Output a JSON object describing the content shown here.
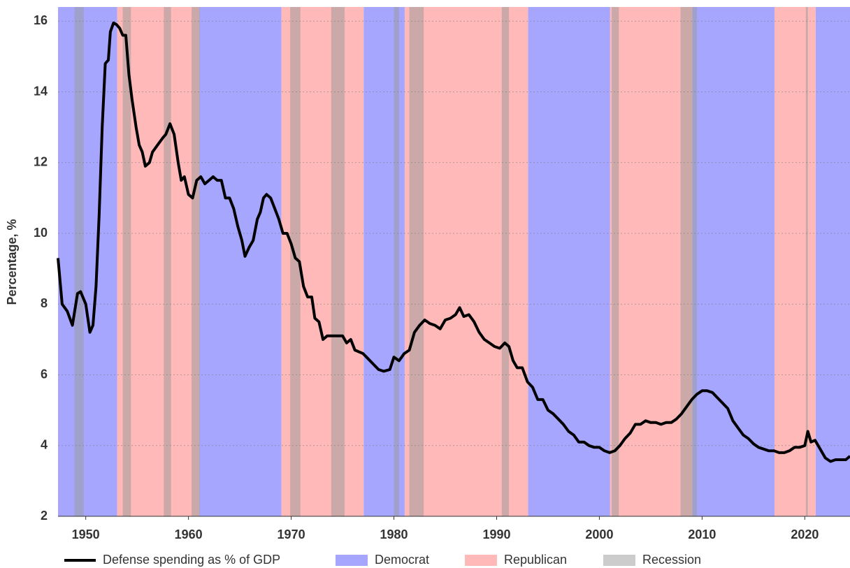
{
  "chart_data": {
    "type": "line",
    "y_label": "Percentage, %",
    "x": [
      1947.3,
      1947.7,
      1948.2,
      1948.7,
      1949.2,
      1949.5,
      1950.0,
      1950.4,
      1950.7,
      1951.0,
      1951.3,
      1951.6,
      1951.9,
      1952.2,
      1952.4,
      1952.7,
      1953.0,
      1953.3,
      1953.6,
      1953.9,
      1954.2,
      1954.5,
      1954.9,
      1955.2,
      1955.5,
      1955.8,
      1956.2,
      1956.5,
      1957.0,
      1957.5,
      1957.8,
      1958.2,
      1958.6,
      1959.0,
      1959.3,
      1959.6,
      1960.0,
      1960.4,
      1960.8,
      1961.2,
      1961.6,
      1962.0,
      1962.4,
      1962.8,
      1963.2,
      1963.6,
      1964.0,
      1964.4,
      1964.8,
      1965.2,
      1965.5,
      1965.9,
      1966.3,
      1966.7,
      1967.0,
      1967.3,
      1967.6,
      1968.0,
      1968.4,
      1968.8,
      1969.2,
      1969.6,
      1970.0,
      1970.4,
      1970.8,
      1971.2,
      1971.6,
      1972.0,
      1972.3,
      1972.7,
      1973.1,
      1973.5,
      1974.0,
      1974.5,
      1975.0,
      1975.4,
      1975.8,
      1976.2,
      1976.6,
      1977.0,
      1977.5,
      1978.0,
      1978.5,
      1979.0,
      1979.6,
      1980.0,
      1980.5,
      1981.0,
      1981.5,
      1982.0,
      1982.5,
      1983.0,
      1983.5,
      1984.0,
      1984.5,
      1985.0,
      1985.5,
      1986.0,
      1986.4,
      1986.8,
      1987.3,
      1987.8,
      1988.3,
      1988.8,
      1989.3,
      1989.8,
      1990.3,
      1990.8,
      1991.2,
      1991.6,
      1992.0,
      1992.5,
      1993.0,
      1993.5,
      1994.0,
      1994.5,
      1995.0,
      1995.5,
      1996.0,
      1996.5,
      1997.0,
      1997.5,
      1998.0,
      1998.5,
      1999.0,
      1999.5,
      2000.0,
      2000.5,
      2001.0,
      2001.5,
      2002.0,
      2002.5,
      2003.0,
      2003.5,
      2004.0,
      2004.5,
      2005.0,
      2005.5,
      2006.0,
      2006.5,
      2007.0,
      2007.5,
      2008.0,
      2008.5,
      2009.0,
      2009.5,
      2010.0,
      2010.5,
      2011.0,
      2011.5,
      2012.0,
      2012.5,
      2013.0,
      2013.5,
      2014.0,
      2014.5,
      2015.0,
      2015.5,
      2016.0,
      2016.5,
      2017.0,
      2017.5,
      2018.0,
      2018.5,
      2019.0,
      2019.5,
      2020.0,
      2020.3,
      2020.6,
      2021.0,
      2021.5,
      2022.0,
      2022.5,
      2023.0,
      2023.5,
      2024.0,
      2024.4
    ],
    "series": [
      {
        "name": "Defense spending as % of GDP",
        "color": "#000000",
        "values": [
          9.3,
          8.0,
          7.8,
          7.4,
          8.3,
          8.35,
          8.0,
          7.2,
          7.4,
          8.5,
          10.5,
          13.0,
          14.8,
          14.9,
          15.7,
          15.95,
          15.9,
          15.8,
          15.6,
          15.6,
          14.5,
          13.8,
          13.0,
          12.5,
          12.3,
          11.9,
          12.0,
          12.3,
          12.5,
          12.7,
          12.8,
          13.1,
          12.8,
          12.0,
          11.5,
          11.6,
          11.1,
          11.0,
          11.5,
          11.6,
          11.4,
          11.5,
          11.6,
          11.5,
          11.5,
          11.0,
          11.0,
          10.7,
          10.2,
          9.8,
          9.35,
          9.6,
          9.8,
          10.4,
          10.6,
          11.0,
          11.1,
          11.0,
          10.7,
          10.4,
          10.0,
          10.0,
          9.7,
          9.3,
          9.2,
          8.5,
          8.2,
          8.2,
          7.6,
          7.5,
          7.0,
          7.1,
          7.1,
          7.1,
          7.1,
          6.9,
          7.0,
          6.7,
          6.65,
          6.6,
          6.45,
          6.3,
          6.15,
          6.1,
          6.15,
          6.5,
          6.4,
          6.6,
          6.7,
          7.2,
          7.4,
          7.55,
          7.45,
          7.4,
          7.3,
          7.55,
          7.6,
          7.7,
          7.9,
          7.65,
          7.7,
          7.5,
          7.2,
          7.0,
          6.9,
          6.8,
          6.75,
          6.9,
          6.8,
          6.4,
          6.2,
          6.2,
          5.8,
          5.65,
          5.3,
          5.3,
          5.0,
          4.9,
          4.75,
          4.6,
          4.4,
          4.3,
          4.1,
          4.1,
          4.0,
          3.95,
          3.95,
          3.85,
          3.8,
          3.85,
          4.0,
          4.2,
          4.35,
          4.6,
          4.6,
          4.7,
          4.65,
          4.65,
          4.6,
          4.65,
          4.65,
          4.75,
          4.9,
          5.1,
          5.3,
          5.45,
          5.55,
          5.55,
          5.5,
          5.35,
          5.2,
          5.05,
          4.7,
          4.5,
          4.3,
          4.2,
          4.05,
          3.95,
          3.9,
          3.85,
          3.85,
          3.8,
          3.8,
          3.85,
          3.95,
          3.95,
          4.0,
          4.4,
          4.1,
          4.15,
          3.9,
          3.65,
          3.55,
          3.6,
          3.6,
          3.6,
          3.7
        ]
      }
    ],
    "spans": [
      {
        "name": "Democrat",
        "color": "#a6a6ff",
        "ranges": [
          [
            1947.3,
            1953.05
          ],
          [
            1961.05,
            1969.05
          ],
          [
            1977.05,
            1981.05
          ],
          [
            1993.05,
            2001.05
          ],
          [
            2009.05,
            2017.05
          ],
          [
            2021.05,
            2024.4
          ]
        ]
      },
      {
        "name": "Republican",
        "color": "#ffb9b9",
        "ranges": [
          [
            1953.05,
            1961.05
          ],
          [
            1969.05,
            1977.05
          ],
          [
            1981.05,
            1993.05
          ],
          [
            2001.05,
            2009.05
          ],
          [
            2017.05,
            2021.05
          ]
        ]
      },
      {
        "name": "Recession",
        "color": "#999999",
        "ranges": [
          [
            1948.9,
            1949.8
          ],
          [
            1953.6,
            1954.4
          ],
          [
            1957.6,
            1958.3
          ],
          [
            1960.3,
            1961.1
          ],
          [
            1969.9,
            1970.9
          ],
          [
            1973.9,
            1975.2
          ],
          [
            1980.0,
            1980.5
          ],
          [
            1981.5,
            1982.9
          ],
          [
            1990.5,
            1991.2
          ],
          [
            2001.2,
            2001.9
          ],
          [
            2007.9,
            2009.5
          ],
          [
            2020.1,
            2020.3
          ]
        ]
      }
    ],
    "xlim": [
      1947.3,
      2024.4
    ],
    "xticks": [
      1950,
      1960,
      1970,
      1980,
      1990,
      2000,
      2010,
      2020
    ],
    "ylim": [
      2,
      16.4
    ],
    "yticks": [
      2,
      4,
      6,
      8,
      10,
      12,
      14,
      16
    ],
    "grid": true
  }
}
